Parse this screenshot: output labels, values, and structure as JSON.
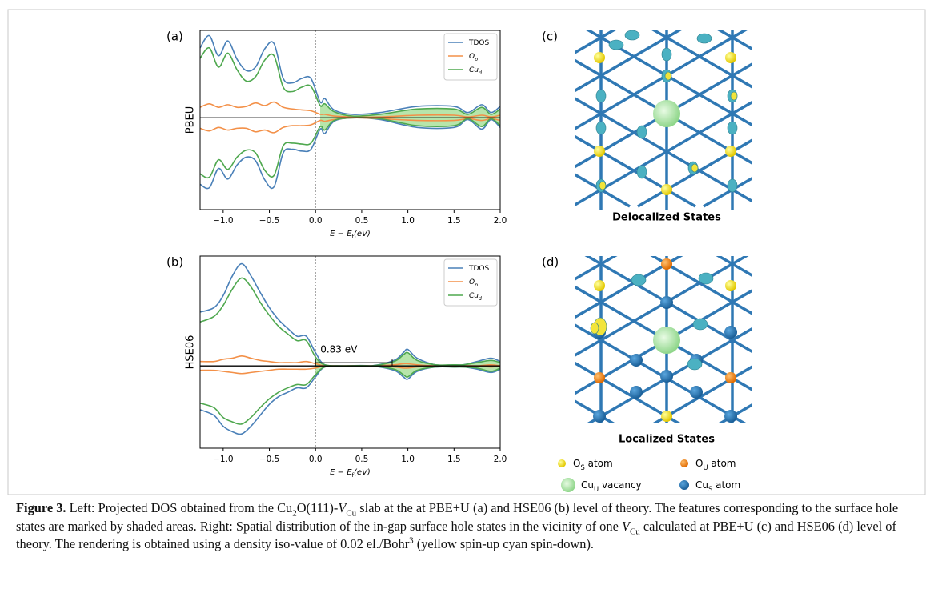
{
  "chart_data": [
    {
      "type": "line",
      "panel_label": "(a)",
      "ylabel": "PBEU",
      "xlabel": [
        {
          "text": "E − E",
          "style": "i"
        },
        {
          "text": "f",
          "style": "sub"
        },
        {
          "text": "(eV)",
          "style": "i"
        }
      ],
      "x": [
        -1.25,
        -1.15,
        -1.05,
        -0.95,
        -0.85,
        -0.75,
        -0.65,
        -0.55,
        -0.45,
        -0.35,
        -0.25,
        -0.15,
        -0.05,
        0.05,
        0.1,
        0.2,
        0.4,
        0.7,
        1.1,
        1.5,
        1.65,
        1.8,
        1.9,
        2.0
      ],
      "xlim": [
        -1.25,
        2.0
      ],
      "ylim": [
        -1.05,
        1
      ],
      "xticks": [
        {
          "value": -1,
          "label": "−1.0"
        },
        {
          "value": -0.5,
          "label": "−0.5"
        },
        {
          "value": 0,
          "label": "0.0"
        },
        0.5,
        {
          "value": 1,
          "label": "1.0"
        },
        1.5,
        {
          "value": 2,
          "label": "2.0"
        }
      ],
      "series": [
        {
          "name": "TDOS",
          "color": "#4a80b8",
          "values": [
            0.8,
            0.94,
            0.71,
            0.88,
            0.67,
            0.54,
            0.58,
            0.79,
            0.85,
            0.45,
            0.4,
            0.45,
            0.45,
            0.18,
            0.22,
            0.09,
            0.04,
            0.06,
            0.13,
            0.13,
            0.06,
            0.15,
            0.06,
            0.13
          ],
          "values_down": [
            -0.76,
            -0.8,
            -0.58,
            -0.7,
            -0.54,
            -0.45,
            -0.49,
            -0.71,
            -0.79,
            -0.4,
            -0.36,
            -0.38,
            -0.36,
            -0.13,
            -0.18,
            -0.04,
            0,
            -0.02,
            -0.11,
            -0.11,
            -0.02,
            -0.13,
            -0.02,
            -0.11
          ]
        },
        {
          "name": "O",
          "name_sub": "p",
          "color": "#f39048",
          "values": [
            0.12,
            0.16,
            0.12,
            0.15,
            0.12,
            0.13,
            0.17,
            0.14,
            0.18,
            0.12,
            0.1,
            0.09,
            0.08,
            0.04,
            0.04,
            0.02,
            0.01,
            0.01,
            0.03,
            0.03,
            0.01,
            0.03,
            0.01,
            0.03
          ],
          "values_down": [
            -0.12,
            -0.15,
            -0.11,
            -0.14,
            -0.12,
            -0.12,
            -0.16,
            -0.14,
            -0.17,
            -0.11,
            -0.09,
            -0.09,
            -0.08,
            -0.03,
            -0.04,
            -0.02,
            0,
            -0.01,
            -0.03,
            -0.03,
            -0.01,
            -0.03,
            -0.01,
            -0.03
          ]
        },
        {
          "name": "Cu",
          "name_sub": "d",
          "color": "#4fa84f",
          "fill": "#9fdc8f",
          "values": [
            0.68,
            0.8,
            0.58,
            0.74,
            0.55,
            0.42,
            0.47,
            0.66,
            0.71,
            0.35,
            0.3,
            0.35,
            0.36,
            0.14,
            0.16,
            0.07,
            0.02,
            0.04,
            0.1,
            0.1,
            0.04,
            0.12,
            0.04,
            0.1
          ],
          "values_down": [
            -0.64,
            -0.68,
            -0.48,
            -0.59,
            -0.45,
            -0.37,
            -0.4,
            -0.6,
            -0.66,
            -0.32,
            -0.29,
            -0.3,
            -0.29,
            -0.1,
            -0.14,
            -0.03,
            0,
            -0.01,
            -0.09,
            -0.09,
            -0.01,
            -0.1,
            -0.01,
            -0.09
          ]
        }
      ]
    },
    {
      "type": "line",
      "panel_label": "(b)",
      "ylabel": "HSE06",
      "xlabel": [
        {
          "text": "E − E",
          "style": "i"
        },
        {
          "text": "f",
          "style": "sub"
        },
        {
          "text": "(eV)",
          "style": "i"
        }
      ],
      "x": [
        -1.25,
        -1.1,
        -1.0,
        -0.9,
        -0.8,
        -0.7,
        -0.6,
        -0.5,
        -0.4,
        -0.3,
        -0.2,
        -0.1,
        0,
        0.1,
        0.3,
        0.6,
        0.85,
        0.95,
        1.0,
        1.1,
        1.3,
        1.5,
        1.6,
        1.75,
        1.9,
        2.0
      ],
      "xlim": [
        -1.25,
        2.0
      ],
      "ylim": [
        -0.75,
        1.0
      ],
      "xticks": [
        {
          "value": -1,
          "label": "−1.0"
        },
        {
          "value": -0.5,
          "label": "−0.5"
        },
        {
          "value": 0,
          "label": "0.0"
        },
        0.5,
        {
          "value": 1,
          "label": "1.0"
        },
        1.5,
        {
          "value": 2,
          "label": "2.0"
        }
      ],
      "gap": {
        "label": "0.83 eV",
        "from": 0,
        "to": 0.83
      },
      "series": [
        {
          "name": "TDOS",
          "color": "#4a80b8",
          "values": [
            0.49,
            0.53,
            0.64,
            0.82,
            0.93,
            0.82,
            0.67,
            0.53,
            0.42,
            0.34,
            0.27,
            0.27,
            0.12,
            0.01,
            0,
            0,
            0.05,
            0.12,
            0.15,
            0.07,
            0.01,
            0.01,
            0.01,
            0.04,
            0.07,
            0.04
          ],
          "values_down": [
            -0.4,
            -0.45,
            -0.55,
            -0.6,
            -0.62,
            -0.55,
            -0.45,
            -0.35,
            -0.28,
            -0.24,
            -0.2,
            -0.2,
            -0.1,
            -0.01,
            0,
            0,
            -0.04,
            -0.1,
            -0.12,
            -0.05,
            -0.01,
            -0.01,
            -0.01,
            -0.03,
            -0.06,
            -0.03
          ]
        },
        {
          "name": "O",
          "name_sub": "p",
          "color": "#f39048",
          "values": [
            0.04,
            0.04,
            0.06,
            0.07,
            0.09,
            0.07,
            0.05,
            0.04,
            0.03,
            0.03,
            0.03,
            0.04,
            0.02,
            0,
            0,
            0,
            0.01,
            0.02,
            0.02,
            0.01,
            0,
            0,
            0,
            0,
            0.01,
            0
          ],
          "values_down": [
            -0.04,
            -0.04,
            -0.05,
            -0.06,
            -0.07,
            -0.06,
            -0.05,
            -0.04,
            -0.03,
            -0.03,
            -0.03,
            -0.03,
            -0.02,
            0,
            0,
            0,
            -0.01,
            -0.02,
            -0.02,
            -0.01,
            0,
            0,
            0,
            0,
            -0.01,
            0
          ]
        },
        {
          "name": "Cu",
          "name_sub": "d",
          "color": "#4fa84f",
          "fill": "#9fdc8f",
          "values": [
            0.4,
            0.45,
            0.55,
            0.7,
            0.8,
            0.72,
            0.58,
            0.46,
            0.36,
            0.29,
            0.23,
            0.23,
            0.08,
            0.01,
            0,
            0,
            0.04,
            0.1,
            0.12,
            0.05,
            0.01,
            0.01,
            0.01,
            0.03,
            0.05,
            0.03
          ],
          "values_down": [
            -0.34,
            -0.38,
            -0.47,
            -0.51,
            -0.53,
            -0.47,
            -0.38,
            -0.3,
            -0.24,
            -0.2,
            -0.17,
            -0.17,
            -0.08,
            -0.01,
            0,
            0,
            -0.03,
            -0.08,
            -0.1,
            -0.04,
            -0.01,
            -0.01,
            -0.01,
            -0.02,
            -0.05,
            -0.02
          ]
        }
      ]
    }
  ],
  "images": [
    {
      "label": "(c)",
      "caption": "Delocalized States"
    },
    {
      "label": "(d)",
      "caption": "Localized States"
    }
  ],
  "atom_legend": [
    [
      {
        "text": "O",
        "style": "plain"
      },
      {
        "text": "S",
        "style": "sub"
      },
      {
        "text": " atom",
        "style": "plain"
      }
    ],
    [
      {
        "text": "O",
        "style": "plain"
      },
      {
        "text": "U",
        "style": "sub"
      },
      {
        "text": " atom",
        "style": "plain"
      }
    ],
    [
      {
        "text": "Cu",
        "style": "plain"
      },
      {
        "text": "U",
        "style": "sub"
      },
      {
        "text": " vacancy",
        "style": "plain"
      }
    ],
    [
      {
        "text": "Cu",
        "style": "plain"
      },
      {
        "text": "S",
        "style": "sub"
      },
      {
        "text": " atom",
        "style": "plain"
      }
    ]
  ],
  "caption": [
    {
      "text": "Figure 3.",
      "style": "b"
    },
    {
      "text": " Left: Projected DOS obtained from the Cu",
      "style": "plain"
    },
    {
      "text": "2",
      "style": "sub"
    },
    {
      "text": "O(111)-",
      "style": "plain"
    },
    {
      "text": "V",
      "style": "i"
    },
    {
      "text": "Cu",
      "style": "sub"
    },
    {
      "text": " slab at the at PBE+U (a) and HSE06 (b) level of theory. The features corresponding to the surface hole states are marked by shaded areas. Right: Spatial distribution of the in-gap surface hole states in the vicinity of one ",
      "style": "plain"
    },
    {
      "text": "V",
      "style": "i"
    },
    {
      "text": "Cu",
      "style": "sub"
    },
    {
      "text": " calculated at PBE+U (c) and HSE06 (d) level of theory. The rendering is obtained using a density iso-value of 0.02 el./Bohr",
      "style": "plain"
    },
    {
      "text": "3",
      "style": "sup"
    },
    {
      "text": " (yellow spin-up cyan spin-down).",
      "style": "plain"
    }
  ]
}
